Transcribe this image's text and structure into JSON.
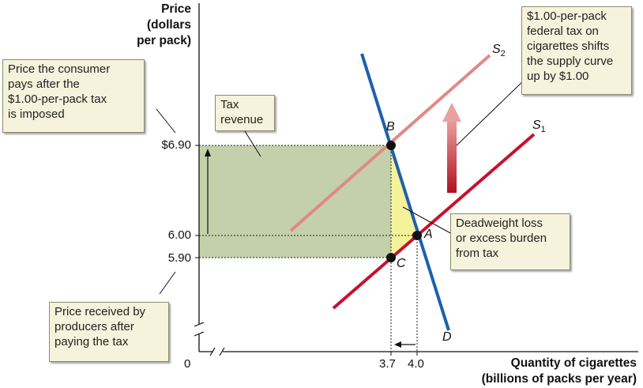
{
  "y_axis_title": [
    "Price",
    "(dollars",
    "per pack)"
  ],
  "x_axis_title": [
    "Quantity of cigarettes",
    "(billions of packs per year)"
  ],
  "y_ticks": [
    "$6.90",
    "6.00",
    "5.90"
  ],
  "x_ticks": [
    "0",
    "3.7",
    "4.0"
  ],
  "points": {
    "A": "A",
    "B": "B",
    "C": "C"
  },
  "curves": {
    "demand": "D",
    "supply_original": {
      "base": "S",
      "sub": "1"
    },
    "supply_taxed": {
      "base": "S",
      "sub": "2"
    }
  },
  "annotations": {
    "consumer_price": [
      "Price the consumer",
      "pays after the",
      "$1.00-per-pack tax",
      "is imposed"
    ],
    "producer_price": [
      "Price received by",
      "producers after",
      "paying the tax"
    ],
    "tax_revenue": [
      "Tax",
      "revenue"
    ],
    "shift": [
      "$1.00-per-pack",
      "federal tax on",
      "cigarettes shifts",
      "the supply curve",
      "up by $1.00"
    ],
    "deadweight": [
      "Deadweight loss",
      "or excess burden",
      "from tax"
    ]
  },
  "colors": {
    "demand": "#1f5fae",
    "supply_original": "#c8102e",
    "supply_taxed": "#e08a86",
    "tax_revenue_area": "#b8c89a",
    "deadweight_area": "#f6f29a",
    "shift_arrow": "#c8102e"
  },
  "chart_data": {
    "type": "line",
    "xlabel": "Quantity of cigarettes (billions of packs per year)",
    "ylabel": "Price (dollars per pack)",
    "equilibria": {
      "A": {
        "quantity": 4.0,
        "price": 6.0
      },
      "B": {
        "quantity": 3.7,
        "price": 6.9
      },
      "C": {
        "quantity": 3.7,
        "price": 5.9
      }
    },
    "tax_per_pack": 1.0,
    "series": [
      {
        "name": "D"
      },
      {
        "name": "S1"
      },
      {
        "name": "S2"
      }
    ]
  }
}
